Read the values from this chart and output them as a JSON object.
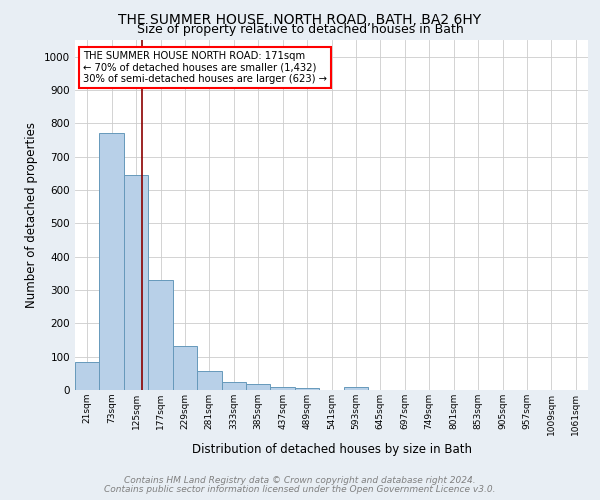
{
  "title1": "THE SUMMER HOUSE, NORTH ROAD, BATH, BA2 6HY",
  "title2": "Size of property relative to detached houses in Bath",
  "xlabel": "Distribution of detached houses by size in Bath",
  "ylabel": "Number of detached properties",
  "footer1": "Contains HM Land Registry data © Crown copyright and database right 2024.",
  "footer2": "Contains public sector information licensed under the Open Government Licence v3.0.",
  "bin_labels": [
    "21sqm",
    "73sqm",
    "125sqm",
    "177sqm",
    "229sqm",
    "281sqm",
    "333sqm",
    "385sqm",
    "437sqm",
    "489sqm",
    "541sqm",
    "593sqm",
    "645sqm",
    "697sqm",
    "749sqm",
    "801sqm",
    "853sqm",
    "905sqm",
    "957sqm",
    "1009sqm",
    "1061sqm"
  ],
  "bar_values": [
    83,
    770,
    645,
    330,
    133,
    58,
    25,
    18,
    10,
    7,
    0,
    10,
    0,
    0,
    0,
    0,
    0,
    0,
    0,
    0,
    0
  ],
  "bar_color": "#b8d0e8",
  "bar_edge_color": "#6699bb",
  "ylim": [
    0,
    1050
  ],
  "yticks": [
    0,
    100,
    200,
    300,
    400,
    500,
    600,
    700,
    800,
    900,
    1000
  ],
  "red_line_x": 2.73,
  "annotation_title": "THE SUMMER HOUSE NORTH ROAD: 171sqm",
  "annotation_line1": "← 70% of detached houses are smaller (1,432)",
  "annotation_line2": "30% of semi-detached houses are larger (623) →",
  "bg_color": "#e8eef4",
  "plot_bg_color": "#ffffff",
  "grid_color": "#cccccc"
}
